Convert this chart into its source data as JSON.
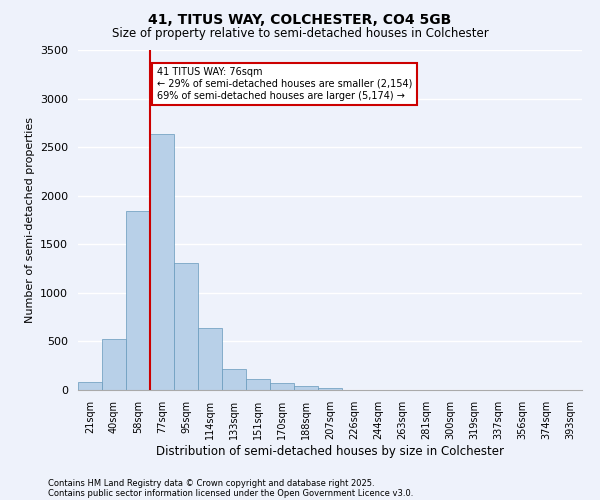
{
  "title": "41, TITUS WAY, COLCHESTER, CO4 5GB",
  "subtitle": "Size of property relative to semi-detached houses in Colchester",
  "xlabel": "Distribution of semi-detached houses by size in Colchester",
  "ylabel": "Number of semi-detached properties",
  "footnote1": "Contains HM Land Registry data © Crown copyright and database right 2025.",
  "footnote2": "Contains public sector information licensed under the Open Government Licence v3.0.",
  "categories": [
    "21sqm",
    "40sqm",
    "58sqm",
    "77sqm",
    "95sqm",
    "114sqm",
    "133sqm",
    "151sqm",
    "170sqm",
    "188sqm",
    "207sqm",
    "226sqm",
    "244sqm",
    "263sqm",
    "281sqm",
    "300sqm",
    "319sqm",
    "337sqm",
    "356sqm",
    "374sqm",
    "393sqm"
  ],
  "values": [
    80,
    530,
    1840,
    2640,
    1310,
    640,
    220,
    110,
    70,
    40,
    20,
    5,
    5,
    2,
    1,
    0,
    0,
    0,
    0,
    0,
    0
  ],
  "bar_color": "#b8d0e8",
  "bar_edge_color": "#6699bb",
  "background_color": "#eef2fb",
  "grid_color": "#ffffff",
  "annotation_text": "41 TITUS WAY: 76sqm\n← 29% of semi-detached houses are smaller (2,154)\n69% of semi-detached houses are larger (5,174) →",
  "annotation_box_color": "#ffffff",
  "annotation_box_edge": "#cc0000",
  "vline_color": "#cc0000",
  "vline_x_index": 3,
  "ylim": [
    0,
    3500
  ],
  "yticks": [
    0,
    500,
    1000,
    1500,
    2000,
    2500,
    3000,
    3500
  ]
}
